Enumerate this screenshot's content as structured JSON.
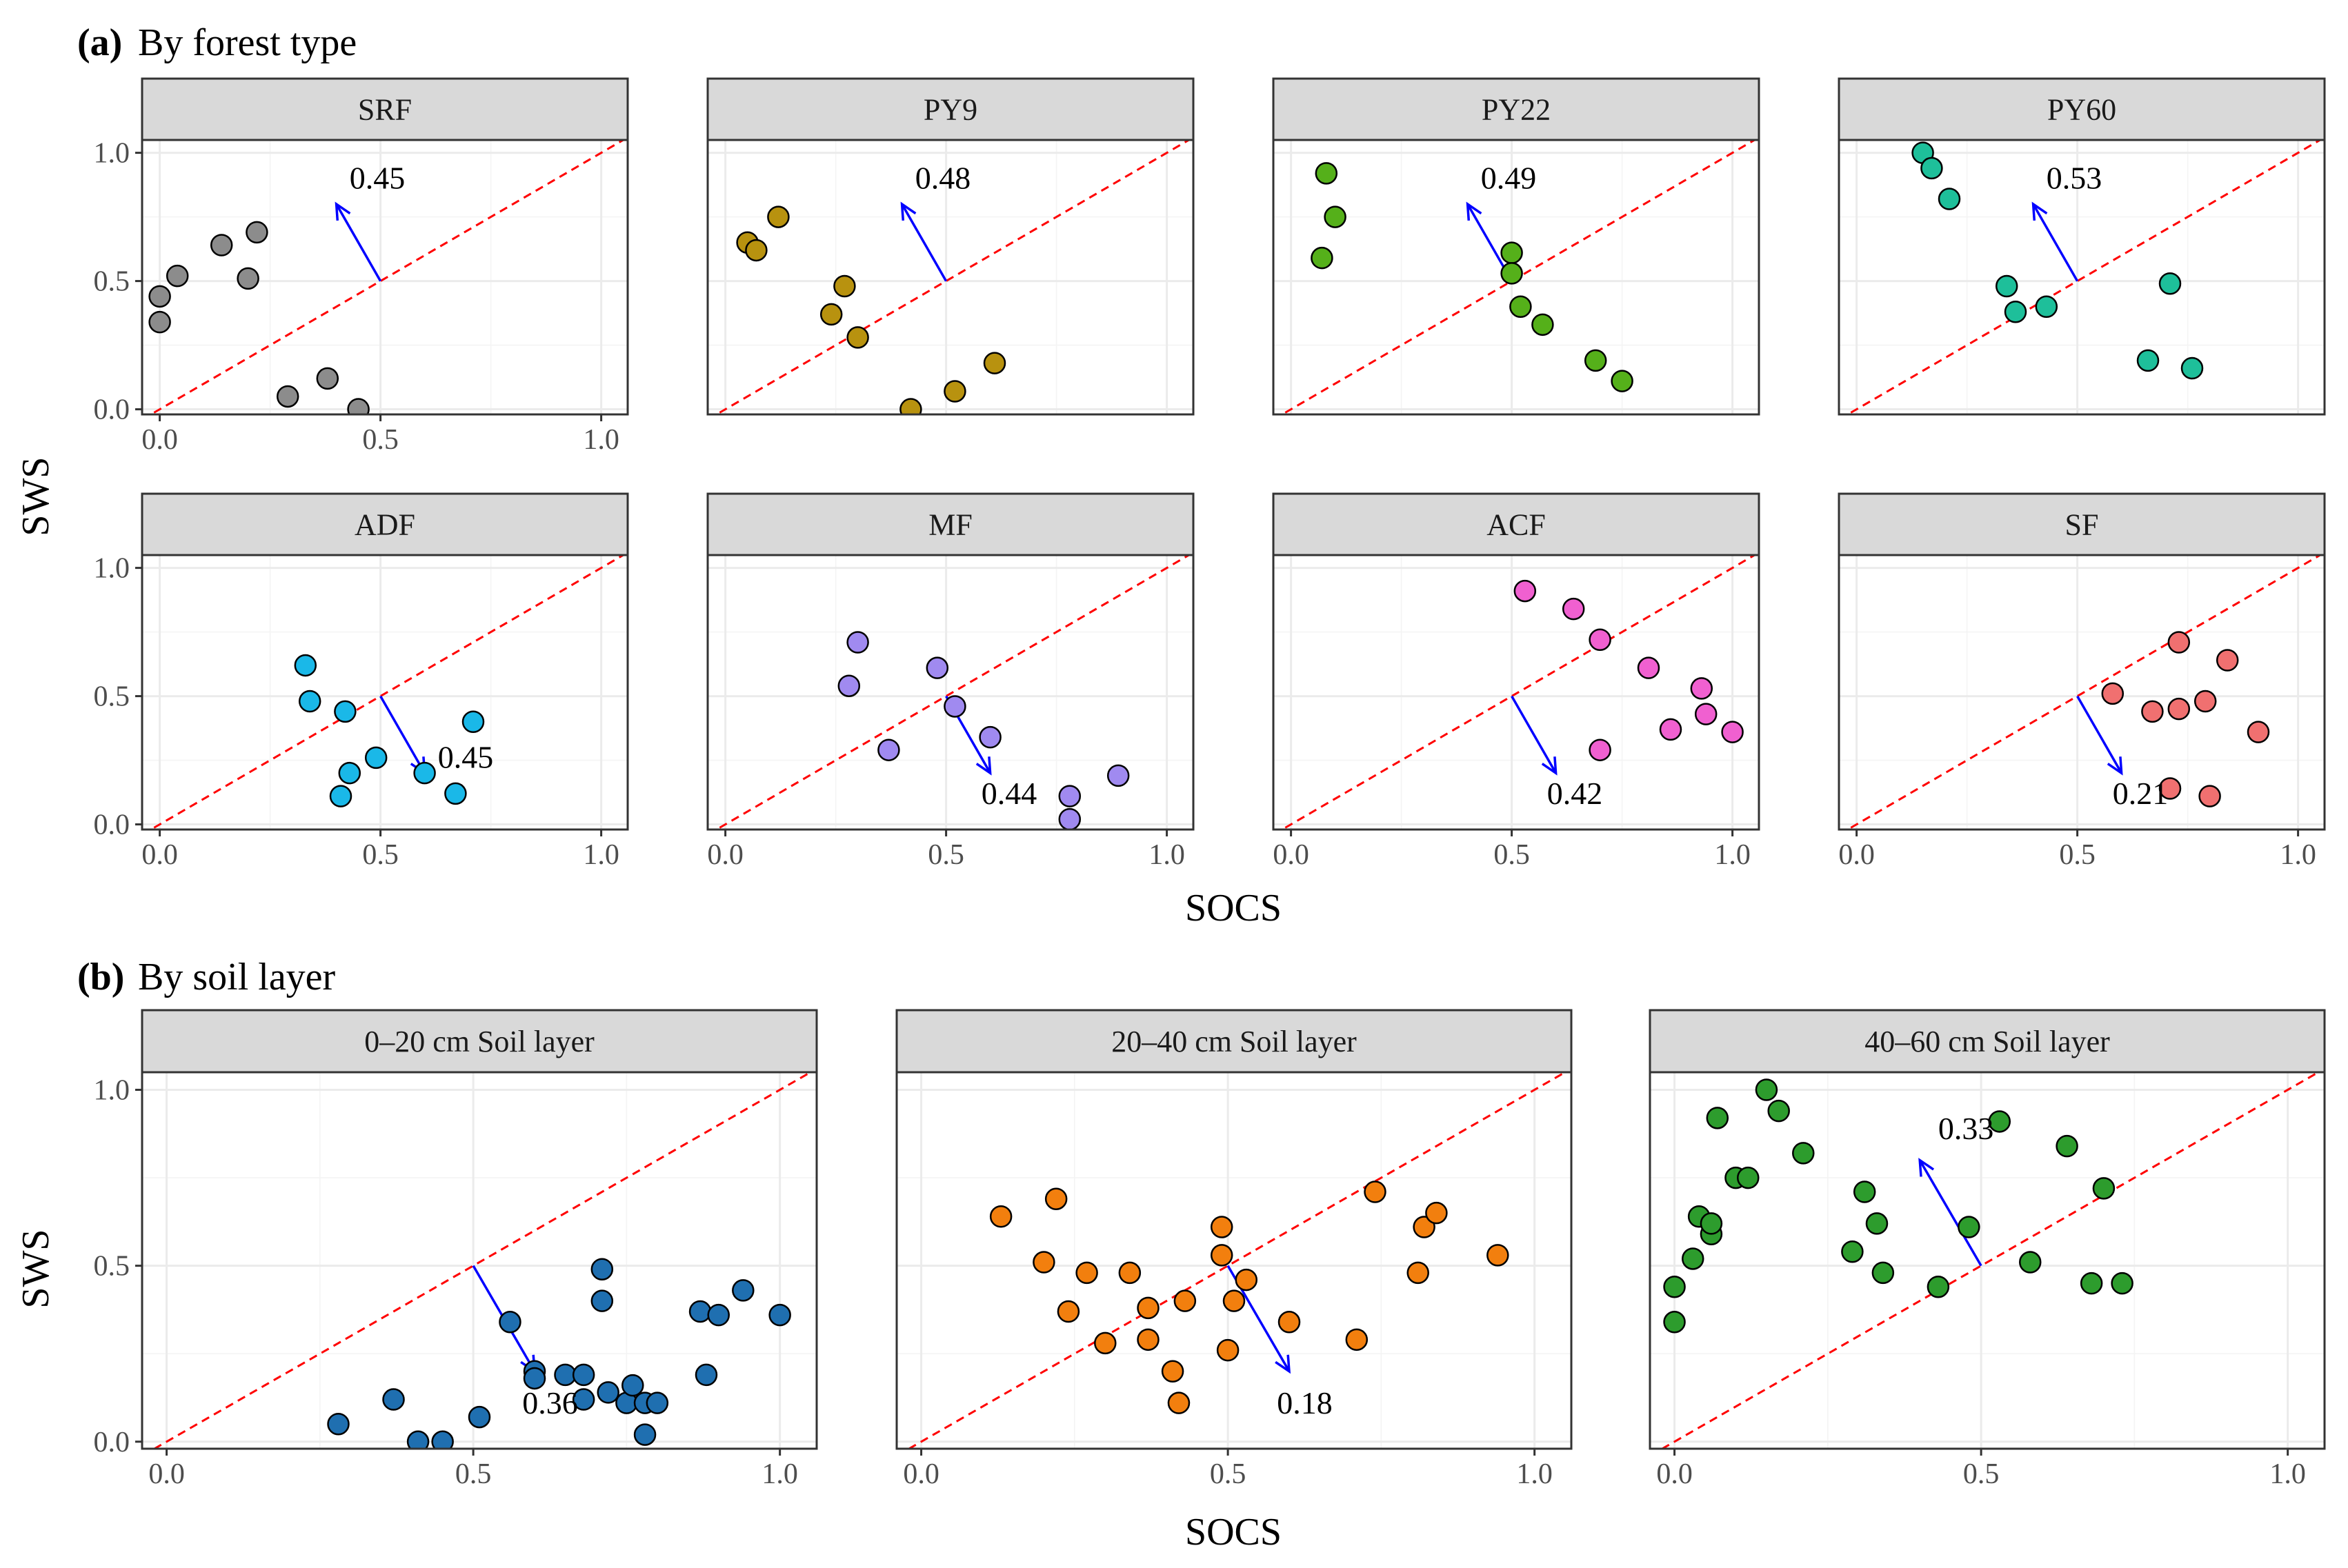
{
  "sections": [
    {
      "tag": "(a)",
      "title": "By forest type"
    },
    {
      "tag": "(b)",
      "title": "By soil layer"
    }
  ],
  "axes": {
    "xlabel": "SOCS",
    "ylabel": "SWS",
    "xlim": [
      -0.04,
      1.06
    ],
    "ylim": [
      -0.02,
      1.05
    ],
    "xticks": [
      "0.0",
      "0.5",
      "1.0"
    ],
    "yticks": [
      "0.0",
      "0.5",
      "1.0"
    ]
  },
  "chart_data": [
    {
      "type": "scatter",
      "title": "SRF",
      "color": "#8c8c8c",
      "angle_label": "0.45",
      "arrow_dir": "up",
      "x": [
        0.0,
        0.0,
        0.04,
        0.14,
        0.2,
        0.22,
        0.29,
        0.38,
        0.45
      ],
      "y": [
        0.34,
        0.44,
        0.52,
        0.64,
        0.51,
        0.69,
        0.05,
        0.12,
        0.0
      ]
    },
    {
      "type": "scatter",
      "title": "PY9",
      "color": "#b8920f",
      "angle_label": "0.48",
      "arrow_dir": "up",
      "x": [
        0.05,
        0.07,
        0.12,
        0.24,
        0.27,
        0.3,
        0.42,
        0.52,
        0.61
      ],
      "y": [
        0.65,
        0.62,
        0.75,
        0.37,
        0.48,
        0.28,
        0.0,
        0.07,
        0.18
      ]
    },
    {
      "type": "scatter",
      "title": "PY22",
      "color": "#55b01a",
      "angle_label": "0.49",
      "arrow_dir": "up",
      "x": [
        0.07,
        0.08,
        0.1,
        0.5,
        0.5,
        0.52,
        0.57,
        0.69,
        0.75
      ],
      "y": [
        0.59,
        0.92,
        0.75,
        0.61,
        0.53,
        0.4,
        0.33,
        0.19,
        0.11
      ]
    },
    {
      "type": "scatter",
      "title": "PY60",
      "color": "#1ebf9a",
      "angle_label": "0.53",
      "arrow_dir": "up",
      "x": [
        0.15,
        0.17,
        0.21,
        0.34,
        0.36,
        0.43,
        0.66,
        0.71,
        0.76
      ],
      "y": [
        1.0,
        0.94,
        0.82,
        0.48,
        0.38,
        0.4,
        0.19,
        0.49,
        0.16
      ]
    },
    {
      "type": "scatter",
      "title": "ADF",
      "color": "#1ab8e8",
      "angle_label": "0.45",
      "arrow_dir": "down",
      "x": [
        0.33,
        0.34,
        0.42,
        0.43,
        0.41,
        0.49,
        0.6,
        0.67,
        0.71
      ],
      "y": [
        0.62,
        0.48,
        0.44,
        0.2,
        0.11,
        0.26,
        0.2,
        0.12,
        0.4
      ]
    },
    {
      "type": "scatter",
      "title": "MF",
      "color": "#a08af0",
      "angle_label": "0.44",
      "arrow_dir": "down",
      "x": [
        0.28,
        0.3,
        0.37,
        0.48,
        0.52,
        0.6,
        0.78,
        0.78,
        0.89
      ],
      "y": [
        0.54,
        0.71,
        0.29,
        0.61,
        0.46,
        0.34,
        0.11,
        0.02,
        0.19
      ]
    },
    {
      "type": "scatter",
      "title": "ACF",
      "color": "#f060d0",
      "angle_label": "0.42",
      "arrow_dir": "down",
      "x": [
        0.53,
        0.64,
        0.7,
        0.7,
        0.81,
        0.86,
        0.93,
        0.94,
        1.0
      ],
      "y": [
        0.91,
        0.84,
        0.72,
        0.29,
        0.61,
        0.37,
        0.53,
        0.43,
        0.36
      ]
    },
    {
      "type": "scatter",
      "title": "SF",
      "color": "#f07070",
      "angle_label": "0.21",
      "arrow_dir": "down",
      "x": [
        0.58,
        0.67,
        0.71,
        0.73,
        0.73,
        0.79,
        0.8,
        0.84,
        0.91
      ],
      "y": [
        0.51,
        0.44,
        0.14,
        0.71,
        0.45,
        0.48,
        0.11,
        0.64,
        0.36
      ]
    },
    {
      "type": "scatter",
      "title": "0–20 cm Soil layer",
      "color": "#1f6fb0",
      "angle_label": "0.36",
      "arrow_dir": "down",
      "x": [
        0.28,
        0.37,
        0.41,
        0.45,
        0.51,
        0.56,
        0.6,
        0.6,
        0.65,
        0.68,
        0.68,
        0.71,
        0.71,
        0.72,
        0.75,
        0.76,
        0.78,
        0.78,
        0.8,
        0.87,
        0.88,
        0.9,
        0.94,
        1.0
      ],
      "y": [
        0.05,
        0.12,
        0.0,
        0.0,
        0.07,
        0.34,
        0.2,
        0.18,
        0.19,
        0.19,
        0.12,
        0.49,
        0.4,
        0.14,
        0.11,
        0.16,
        0.11,
        0.02,
        0.11,
        0.37,
        0.19,
        0.36,
        0.43,
        0.36
      ]
    },
    {
      "type": "scatter",
      "title": "20–40 cm Soil layer",
      "color": "#f27f0e",
      "angle_label": "0.18",
      "arrow_dir": "down",
      "x": [
        0.13,
        0.2,
        0.22,
        0.24,
        0.27,
        0.3,
        0.34,
        0.37,
        0.37,
        0.41,
        0.42,
        0.43,
        0.49,
        0.49,
        0.5,
        0.51,
        0.53,
        0.6,
        0.71,
        0.74,
        0.81,
        0.82,
        0.84,
        0.94
      ],
      "y": [
        0.64,
        0.51,
        0.69,
        0.37,
        0.48,
        0.28,
        0.48,
        0.38,
        0.29,
        0.2,
        0.11,
        0.4,
        0.61,
        0.53,
        0.26,
        0.4,
        0.46,
        0.34,
        0.29,
        0.71,
        0.48,
        0.61,
        0.65,
        0.53
      ]
    },
    {
      "type": "scatter",
      "title": "40–60 cm Soil layer",
      "color": "#2d9c2d",
      "angle_label": "0.33",
      "arrow_dir": "up",
      "x": [
        0.0,
        0.0,
        0.03,
        0.04,
        0.06,
        0.06,
        0.07,
        0.1,
        0.12,
        0.15,
        0.17,
        0.21,
        0.29,
        0.31,
        0.33,
        0.34,
        0.43,
        0.48,
        0.53,
        0.58,
        0.64,
        0.68,
        0.7,
        0.73
      ],
      "y": [
        0.34,
        0.44,
        0.52,
        0.64,
        0.59,
        0.62,
        0.92,
        0.75,
        0.75,
        1.0,
        0.94,
        0.82,
        0.54,
        0.71,
        0.62,
        0.48,
        0.44,
        0.61,
        0.91,
        0.51,
        0.84,
        0.45,
        0.72,
        0.45
      ]
    }
  ]
}
